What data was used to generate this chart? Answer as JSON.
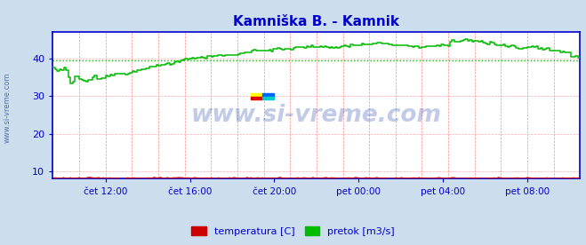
{
  "title": "Kamniška B. - Kamnik",
  "title_color": "#0000cc",
  "background_color": "#ccdded",
  "plot_bg_color": "#ffffff",
  "xlabel_color": "#0000cc",
  "yticks": [
    10,
    20,
    30,
    40
  ],
  "ylim": [
    8,
    47
  ],
  "xtick_labels": [
    "čet 12:00",
    "čet 16:00",
    "čet 20:00",
    "pet 00:00",
    "pet 04:00",
    "pet 08:00"
  ],
  "xtick_positions": [
    0.1,
    0.26,
    0.42,
    0.58,
    0.74,
    0.9
  ],
  "legend_labels": [
    "temperatura [C]",
    "pretok [m3/s]"
  ],
  "legend_colors": [
    "#cc0000",
    "#00cc00"
  ],
  "watermark": "www.si-vreme.com",
  "watermark_color": "#2244aa",
  "side_label": "www.si-vreme.com",
  "side_label_color": "#4466aa",
  "grid_color_v": "#ff8888",
  "grid_color_h": "#ffaaaa",
  "axis_color": "#0000cc",
  "dashed_line_y": 39.5,
  "dashed_line_color": "#00bb00",
  "temp_color": "#cc0000",
  "pretok_color": "#00bb00"
}
